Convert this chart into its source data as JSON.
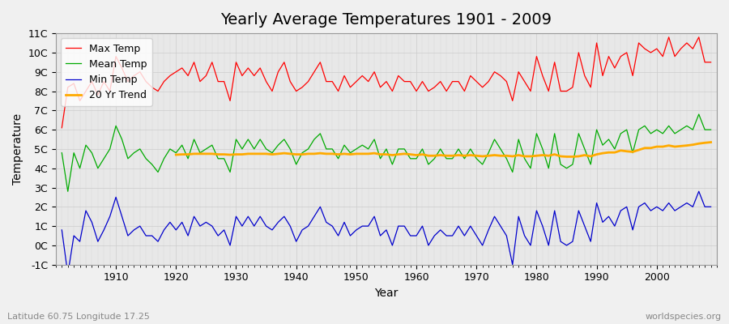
{
  "title": "Yearly Average Temperatures 1901 - 2009",
  "xlabel": "Year",
  "ylabel": "Temperature",
  "footnote_left": "Latitude 60.75 Longitude 17.25",
  "footnote_right": "worldspecies.org",
  "years": [
    1901,
    1902,
    1903,
    1904,
    1905,
    1906,
    1907,
    1908,
    1909,
    1910,
    1911,
    1912,
    1913,
    1914,
    1915,
    1916,
    1917,
    1918,
    1919,
    1920,
    1921,
    1922,
    1923,
    1924,
    1925,
    1926,
    1927,
    1928,
    1929,
    1930,
    1931,
    1932,
    1933,
    1934,
    1935,
    1936,
    1937,
    1938,
    1939,
    1940,
    1941,
    1942,
    1943,
    1944,
    1945,
    1946,
    1947,
    1948,
    1949,
    1950,
    1951,
    1952,
    1953,
    1954,
    1955,
    1956,
    1957,
    1958,
    1959,
    1960,
    1961,
    1962,
    1963,
    1964,
    1965,
    1966,
    1967,
    1968,
    1969,
    1970,
    1971,
    1972,
    1973,
    1974,
    1975,
    1976,
    1977,
    1978,
    1979,
    1980,
    1981,
    1982,
    1983,
    1984,
    1985,
    1986,
    1987,
    1988,
    1989,
    1990,
    1991,
    1992,
    1993,
    1994,
    1995,
    1996,
    1997,
    1998,
    1999,
    2000,
    2001,
    2002,
    2003,
    2004,
    2005,
    2006,
    2007,
    2008,
    2009
  ],
  "max_temp": [
    6.1,
    8.2,
    8.4,
    7.5,
    8.0,
    8.5,
    7.8,
    8.5,
    8.0,
    9.8,
    9.2,
    8.5,
    8.8,
    9.0,
    8.5,
    8.2,
    8.0,
    8.5,
    8.8,
    9.0,
    9.2,
    8.8,
    9.5,
    8.5,
    8.8,
    9.5,
    8.5,
    8.5,
    7.5,
    9.5,
    8.8,
    9.2,
    8.8,
    9.2,
    8.5,
    8.0,
    9.0,
    9.5,
    8.5,
    8.0,
    8.2,
    8.5,
    9.0,
    9.5,
    8.5,
    8.5,
    8.0,
    8.8,
    8.2,
    8.5,
    8.8,
    8.5,
    9.0,
    8.2,
    8.5,
    8.0,
    8.8,
    8.5,
    8.5,
    8.0,
    8.5,
    8.0,
    8.2,
    8.5,
    8.0,
    8.5,
    8.5,
    8.0,
    8.8,
    8.5,
    8.2,
    8.5,
    9.0,
    8.8,
    8.5,
    7.5,
    9.0,
    8.5,
    8.0,
    9.8,
    8.8,
    8.0,
    9.5,
    8.0,
    8.0,
    8.2,
    10.0,
    8.8,
    8.2,
    10.5,
    8.8,
    9.8,
    9.2,
    9.8,
    10.0,
    8.8,
    10.5,
    10.2,
    10.0,
    10.2,
    9.8,
    10.8,
    9.8,
    10.2,
    10.5,
    10.2,
    10.8,
    9.5,
    9.5
  ],
  "mean_temp": [
    4.8,
    2.8,
    4.8,
    4.0,
    5.2,
    4.8,
    4.0,
    4.5,
    5.0,
    6.2,
    5.5,
    4.5,
    4.8,
    5.0,
    4.5,
    4.2,
    3.8,
    4.5,
    5.0,
    4.8,
    5.2,
    4.5,
    5.5,
    4.8,
    5.0,
    5.2,
    4.5,
    4.5,
    3.8,
    5.5,
    5.0,
    5.5,
    5.0,
    5.5,
    5.0,
    4.8,
    5.2,
    5.5,
    5.0,
    4.2,
    4.8,
    5.0,
    5.5,
    5.8,
    5.0,
    5.0,
    4.5,
    5.2,
    4.8,
    5.0,
    5.2,
    5.0,
    5.5,
    4.5,
    5.0,
    4.2,
    5.0,
    5.0,
    4.5,
    4.5,
    5.0,
    4.2,
    4.5,
    5.0,
    4.5,
    4.5,
    5.0,
    4.5,
    5.0,
    4.5,
    4.2,
    4.8,
    5.5,
    5.0,
    4.5,
    3.8,
    5.5,
    4.5,
    4.0,
    5.8,
    5.0,
    4.0,
    5.8,
    4.2,
    4.0,
    4.2,
    5.8,
    5.0,
    4.2,
    6.0,
    5.2,
    5.5,
    5.0,
    5.8,
    6.0,
    4.8,
    6.0,
    6.2,
    5.8,
    6.0,
    5.8,
    6.2,
    5.8,
    6.0,
    6.2,
    6.0,
    6.8,
    6.0,
    6.0
  ],
  "min_temp": [
    0.8,
    -1.5,
    0.5,
    0.2,
    1.8,
    1.2,
    0.2,
    0.8,
    1.5,
    2.5,
    1.5,
    0.5,
    0.8,
    1.0,
    0.5,
    0.5,
    0.2,
    0.8,
    1.2,
    0.8,
    1.2,
    0.5,
    1.5,
    1.0,
    1.2,
    1.0,
    0.5,
    0.8,
    0.0,
    1.5,
    1.0,
    1.5,
    1.0,
    1.5,
    1.0,
    0.8,
    1.2,
    1.5,
    1.0,
    0.2,
    0.8,
    1.0,
    1.5,
    2.0,
    1.2,
    1.0,
    0.5,
    1.2,
    0.5,
    0.8,
    1.0,
    1.0,
    1.5,
    0.5,
    0.8,
    0.0,
    1.0,
    1.0,
    0.5,
    0.5,
    1.0,
    0.0,
    0.5,
    0.8,
    0.5,
    0.5,
    1.0,
    0.5,
    1.0,
    0.5,
    0.0,
    0.8,
    1.5,
    1.0,
    0.5,
    -1.0,
    1.5,
    0.5,
    0.0,
    1.8,
    1.0,
    0.0,
    1.8,
    0.2,
    0.0,
    0.2,
    1.8,
    1.0,
    0.2,
    2.2,
    1.2,
    1.5,
    1.0,
    1.8,
    2.0,
    0.8,
    2.0,
    2.2,
    1.8,
    2.0,
    1.8,
    2.2,
    1.8,
    2.0,
    2.2,
    2.0,
    2.8,
    2.0,
    2.0
  ],
  "trend_x": [
    1920,
    1921,
    1922,
    1923,
    1924,
    1925,
    1926,
    1927,
    1928,
    1929,
    1930,
    1931,
    1932,
    1933,
    1934,
    1935,
    1936,
    1937,
    1938,
    1939,
    1940,
    1941,
    1942,
    1943,
    1944,
    1945,
    1946,
    1947,
    1948,
    1949,
    1950,
    1951,
    1952,
    1953,
    1954,
    1955,
    1956,
    1957,
    1958,
    1959,
    1960,
    1961,
    1962,
    1963,
    1964,
    1965,
    1966,
    1967,
    1968,
    1969,
    1970,
    1971,
    1972,
    1973,
    1974,
    1975,
    1976,
    1977,
    1978,
    1979,
    1980,
    1981,
    1982,
    1983,
    1984,
    1985,
    1986,
    1987,
    1988,
    1989,
    1990,
    1991,
    1992,
    1993,
    1994,
    1995,
    1996,
    1997,
    1998,
    1999,
    2000,
    2001,
    2002,
    2003,
    2004,
    2005,
    2006,
    2007,
    2008,
    2009
  ],
  "trend_y": [
    4.7,
    4.72,
    4.72,
    4.75,
    4.75,
    4.75,
    4.75,
    4.72,
    4.72,
    4.7,
    4.72,
    4.72,
    4.75,
    4.75,
    4.75,
    4.75,
    4.72,
    4.75,
    4.78,
    4.75,
    4.72,
    4.72,
    4.75,
    4.75,
    4.78,
    4.75,
    4.75,
    4.72,
    4.75,
    4.72,
    4.75,
    4.75,
    4.75,
    4.78,
    4.72,
    4.72,
    4.68,
    4.72,
    4.75,
    4.72,
    4.68,
    4.72,
    4.65,
    4.65,
    4.68,
    4.65,
    4.65,
    4.68,
    4.65,
    4.68,
    4.65,
    4.62,
    4.65,
    4.68,
    4.65,
    4.65,
    4.62,
    4.68,
    4.62,
    4.62,
    4.65,
    4.68,
    4.65,
    4.72,
    4.62,
    4.6,
    4.6,
    4.62,
    4.68,
    4.62,
    4.72,
    4.78,
    4.82,
    4.82,
    4.92,
    4.88,
    4.85,
    4.95,
    5.05,
    5.05,
    5.12,
    5.12,
    5.18,
    5.12,
    5.15,
    5.18,
    5.22,
    5.28,
    5.32,
    5.35
  ],
  "max_color": "#ff0000",
  "mean_color": "#00aa00",
  "min_color": "#0000cc",
  "trend_color": "#ffaa00",
  "bg_color": "#f0f0f0",
  "plot_bg_color": "#e8e8e8",
  "ylim": [
    -1,
    11
  ],
  "yticks": [
    -1,
    0,
    1,
    2,
    3,
    4,
    5,
    6,
    7,
    8,
    9,
    10,
    11
  ],
  "ytick_labels": [
    "-1C",
    "0C",
    "1C",
    "2C",
    "3C",
    "4C",
    "5C",
    "6C",
    "7C",
    "8C",
    "9C",
    "10C",
    "11C"
  ],
  "xlim_start": 1900,
  "xlim_end": 2010,
  "title_fontsize": 14,
  "legend_fontsize": 9,
  "axis_label_fontsize": 10,
  "tick_fontsize": 9
}
